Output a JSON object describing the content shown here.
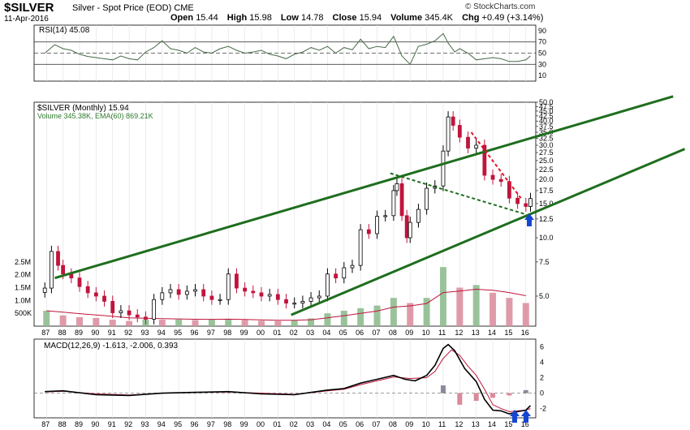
{
  "header": {
    "symbol": "$SILVER",
    "description": "Silver - Spot Price (EOD)",
    "exchange": "CME",
    "date": "11-Apr-2016",
    "open_label": "Open",
    "open": "15.44",
    "high_label": "High",
    "high": "15.98",
    "low_label": "Low",
    "low": "14.78",
    "close_label": "Close",
    "close": "15.94",
    "volume_label": "Volume",
    "volume": "345.4K",
    "chg_label": "Chg",
    "chg": "+0.49 (+3.14%)",
    "watermark": "© StockCharts.com"
  },
  "colors": {
    "price_up": "#000000",
    "price_down": "#c0143c",
    "trend_channel": "#1e6e1e",
    "dashed_green": "#1e6e1e",
    "dashed_red": "#e0142a",
    "arrow_blue": "#1446d2",
    "volume_up": "#8ab98a",
    "volume_down": "#d98a9a",
    "volume_ema": "#c0143c",
    "rsi_line": "#4a6a4a",
    "macd_line": "#000000",
    "signal_line": "#c0143c"
  },
  "chart_data": [
    {
      "type": "line",
      "panel": "rsi",
      "legend": "RSI(14) 45.08",
      "y_ticks": [
        "90",
        "70",
        "50",
        "30",
        "10"
      ],
      "ylim": [
        0,
        100
      ],
      "reference_levels": [
        70,
        50,
        30
      ],
      "series": [
        {
          "name": "RSI(14)",
          "x": [
            1986.9,
            1987.5,
            1988,
            1988.5,
            1989,
            1989.5,
            1990,
            1990.5,
            1991,
            1991.5,
            1992,
            1992.5,
            1993,
            1993.5,
            1994,
            1994.5,
            1995,
            1995.5,
            1996,
            1996.5,
            1997,
            1997.5,
            1998,
            1998.5,
            1999,
            1999.5,
            2000,
            2000.5,
            2001,
            2001.5,
            2002,
            2002.5,
            2003,
            2003.5,
            2004,
            2004.5,
            2005,
            2005.5,
            2006,
            2006.5,
            2007,
            2007.5,
            2008,
            2008.5,
            2009,
            2009.5,
            2010,
            2010.5,
            2011,
            2011.3,
            2011.7,
            2012,
            2012.5,
            2013,
            2013.5,
            2014,
            2014.5,
            2015,
            2015.5,
            2016,
            2016.28
          ],
          "values": [
            50,
            65,
            58,
            55,
            48,
            44,
            42,
            40,
            38,
            45,
            40,
            38,
            52,
            60,
            72,
            58,
            55,
            50,
            60,
            52,
            50,
            58,
            62,
            55,
            50,
            52,
            55,
            48,
            45,
            40,
            48,
            52,
            60,
            55,
            62,
            50,
            60,
            56,
            75,
            58,
            62,
            60,
            80,
            45,
            30,
            62,
            66,
            72,
            85,
            68,
            52,
            58,
            50,
            38,
            40,
            42,
            40,
            35,
            35,
            38,
            45.08
          ]
        }
      ]
    },
    {
      "type": "candlestick",
      "panel": "price",
      "legend": "$SILVER (Monthly) 15.94",
      "scale": "log",
      "ylim": [
        3.5,
        50
      ],
      "y_ticks": [
        "50.0",
        "47.5",
        "45.0",
        "42.5",
        "40.0",
        "37.5",
        "35.0",
        "32.5",
        "30.0",
        "27.5",
        "25.0",
        "22.5",
        "20.0",
        "17.5",
        "15.0",
        "12.5",
        "10.0",
        "7.5",
        "5.0"
      ],
      "x_ticks": [
        "87",
        "88",
        "89",
        "90",
        "91",
        "92",
        "93",
        "94",
        "95",
        "96",
        "97",
        "98",
        "99",
        "00",
        "01",
        "02",
        "03",
        "04",
        "05",
        "06",
        "07",
        "08",
        "09",
        "10",
        "11",
        "12",
        "13",
        "14",
        "15",
        "16"
      ],
      "series": [
        {
          "name": "$SILVER",
          "x": [
            1986.9,
            1987.3,
            1987.7,
            1988,
            1988.5,
            1989,
            1989.5,
            1990,
            1990.5,
            1991,
            1991.5,
            1992,
            1992.5,
            1993,
            1993.5,
            1994,
            1994.5,
            1995,
            1995.5,
            1996,
            1996.5,
            1997,
            1997.5,
            1998,
            1998.5,
            1999,
            1999.5,
            2000,
            2000.5,
            2001,
            2001.5,
            2002,
            2002.5,
            2003,
            2003.5,
            2004,
            2004.5,
            2005,
            2005.5,
            2006,
            2006.5,
            2007,
            2007.5,
            2008,
            2008.2,
            2008.5,
            2008.8,
            2009,
            2009.5,
            2010,
            2010.5,
            2011,
            2011.3,
            2011.6,
            2012,
            2012.5,
            2013,
            2013.5,
            2014,
            2014.5,
            2015,
            2015.5,
            2016,
            2016.28
          ],
          "values": [
            5.5,
            8.5,
            7.2,
            6.5,
            6.2,
            5.6,
            5.2,
            5.0,
            4.7,
            4.1,
            4.2,
            4.0,
            3.9,
            3.8,
            4.8,
            5.2,
            5.4,
            5.1,
            5.3,
            5.4,
            5.0,
            4.8,
            4.8,
            6.5,
            5.5,
            5.3,
            5.2,
            5.0,
            5.1,
            4.8,
            4.6,
            4.6,
            4.7,
            4.9,
            5.0,
            6.5,
            6.2,
            7.0,
            7.2,
            11.0,
            10.5,
            12.9,
            13.0,
            17.5,
            19.0,
            13.0,
            10.0,
            12.0,
            14.0,
            18.0,
            18.5,
            28.0,
            42.0,
            38.0,
            33.0,
            29.0,
            30.0,
            21.0,
            20.0,
            19.5,
            16.0,
            15.0,
            14.5,
            15.94
          ]
        }
      ],
      "annotations": {
        "channel_upper": {
          "x": [
            1987.5,
            2016.5
          ],
          "y": [
            6.2,
            33
          ]
        },
        "channel_lower": {
          "x": [
            2001.8,
            2016.5
          ],
          "y": [
            4.0,
            13.5
          ]
        },
        "green_dashed": {
          "x": [
            2007.8,
            2016
          ],
          "y": [
            21.5,
            13.2
          ]
        },
        "red_dashed": {
          "x": [
            2012.7,
            2015.7
          ],
          "y": [
            35,
            16
          ]
        }
      }
    },
    {
      "type": "bar",
      "panel": "volume",
      "legend": "Volume 345.38K, EMA(60) 869.21K",
      "y_ticks": [
        "2.5M",
        "2.0M",
        "1.5M",
        "1.0M",
        "500K"
      ],
      "series": [
        {
          "name": "Volume",
          "x": [
            1987,
            1988,
            1989,
            1990,
            1991,
            1992,
            1993,
            1994,
            1995,
            1996,
            1997,
            1998,
            1999,
            2000,
            2001,
            2002,
            2003,
            2004,
            2005,
            2006,
            2007,
            2008,
            2009,
            2010,
            2011,
            2012,
            2013,
            2014,
            2015,
            2016
          ],
          "values": [
            600000,
            420000,
            350000,
            320000,
            250000,
            200000,
            260000,
            250000,
            260000,
            240000,
            260000,
            280000,
            240000,
            210000,
            200000,
            220000,
            300000,
            500000,
            600000,
            700000,
            800000,
            1100000,
            900000,
            1100000,
            2300000,
            1500000,
            1600000,
            1300000,
            1100000,
            900000
          ]
        }
      ]
    },
    {
      "type": "line",
      "panel": "macd",
      "legend": "MACD(12,26,9) -1.613, -2.006, 0.393",
      "y_ticks": [
        "6",
        "4",
        "2",
        "0",
        "-2"
      ],
      "ylim": [
        -3.2,
        7
      ],
      "x_ticks": [
        "87",
        "88",
        "89",
        "90",
        "91",
        "92",
        "93",
        "94",
        "95",
        "96",
        "97",
        "98",
        "99",
        "00",
        "01",
        "02",
        "03",
        "04",
        "05",
        "06",
        "07",
        "08",
        "09",
        "10",
        "11",
        "12",
        "13",
        "14",
        "15",
        "16"
      ],
      "series": [
        {
          "name": "MACD",
          "x": [
            1986.9,
            1988,
            1990,
            1992,
            1994,
            1996,
            1998,
            2000,
            2002,
            2004,
            2005,
            2006,
            2007,
            2008,
            2008.7,
            2009.3,
            2010,
            2010.5,
            2011,
            2011.3,
            2011.7,
            2012.3,
            2013,
            2013.5,
            2014,
            2014.5,
            2015,
            2015.5,
            2016,
            2016.28
          ],
          "values": [
            0.2,
            0.3,
            -0.2,
            -0.3,
            0,
            0.1,
            0.2,
            -0.1,
            -0.2,
            0.4,
            0.6,
            1.3,
            1.8,
            2.3,
            1.8,
            1.6,
            2.3,
            3.6,
            5.8,
            6.3,
            5.5,
            3.2,
            1.5,
            -0.8,
            -2.2,
            -2.3,
            -2.7,
            -2.4,
            -2.2,
            -1.613
          ]
        },
        {
          "name": "Signal",
          "x": [
            1986.9,
            1988,
            1990,
            1992,
            1994,
            1996,
            1998,
            2000,
            2002,
            2004,
            2005,
            2006,
            2007,
            2008,
            2009,
            2010,
            2010.5,
            2011,
            2011.5,
            2012,
            2012.5,
            2013,
            2013.5,
            2014,
            2014.5,
            2015,
            2015.5,
            2016,
            2016.28
          ],
          "values": [
            0.15,
            0.25,
            -0.1,
            -0.25,
            0,
            0.1,
            0.15,
            0,
            -0.15,
            0.3,
            0.5,
            1.1,
            1.6,
            2.1,
            1.9,
            2.0,
            2.8,
            4.5,
            5.6,
            4.9,
            3.5,
            2.3,
            0.5,
            -1.5,
            -2.0,
            -2.4,
            -2.3,
            -2.2,
            -2.006
          ]
        },
        {
          "name": "Histogram",
          "x": [
            2011,
            2012,
            2013,
            2014,
            2015,
            2016
          ],
          "values": [
            1.0,
            -1.5,
            -1.0,
            -0.6,
            -0.3,
            0.393
          ]
        }
      ]
    }
  ]
}
